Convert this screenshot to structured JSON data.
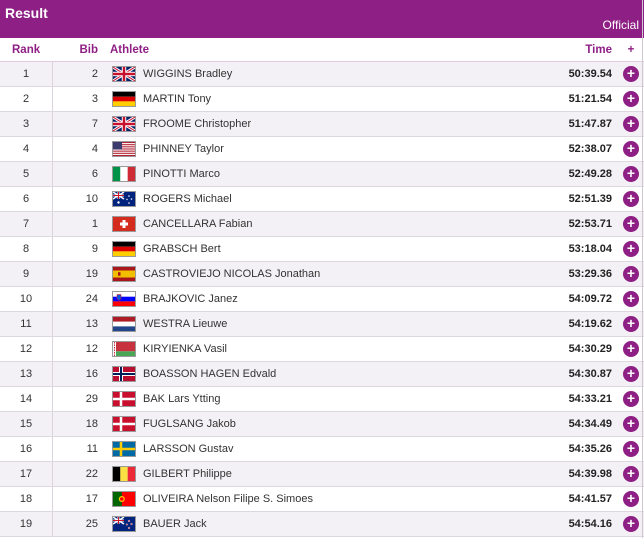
{
  "header": {
    "title": "Result",
    "status": "Official"
  },
  "columns": {
    "rank": "Rank",
    "bib": "Bib",
    "athlete": "Athlete",
    "time": "Time",
    "more": "+"
  },
  "colors": {
    "accent": "#8e1f84",
    "row_alt": "#f3f1f5"
  },
  "results": [
    {
      "rank": "1",
      "bib": "2",
      "flag": "gbr",
      "name": "WIGGINS Bradley",
      "time": "50:39.54"
    },
    {
      "rank": "2",
      "bib": "3",
      "flag": "ger",
      "name": "MARTIN Tony",
      "time": "51:21.54"
    },
    {
      "rank": "3",
      "bib": "7",
      "flag": "gbr",
      "name": "FROOME Christopher",
      "time": "51:47.87"
    },
    {
      "rank": "4",
      "bib": "4",
      "flag": "usa",
      "name": "PHINNEY Taylor",
      "time": "52:38.07"
    },
    {
      "rank": "5",
      "bib": "6",
      "flag": "ita",
      "name": "PINOTTI Marco",
      "time": "52:49.28"
    },
    {
      "rank": "6",
      "bib": "10",
      "flag": "aus",
      "name": "ROGERS Michael",
      "time": "52:51.39"
    },
    {
      "rank": "7",
      "bib": "1",
      "flag": "sui",
      "name": "CANCELLARA Fabian",
      "time": "52:53.71"
    },
    {
      "rank": "8",
      "bib": "9",
      "flag": "ger",
      "name": "GRABSCH Bert",
      "time": "53:18.04"
    },
    {
      "rank": "9",
      "bib": "19",
      "flag": "esp",
      "name": "CASTROVIEJO NICOLAS Jonathan",
      "time": "53:29.36"
    },
    {
      "rank": "10",
      "bib": "24",
      "flag": "slo",
      "name": "BRAJKOVIC Janez",
      "time": "54:09.72"
    },
    {
      "rank": "11",
      "bib": "13",
      "flag": "ned",
      "name": "WESTRA Lieuwe",
      "time": "54:19.62"
    },
    {
      "rank": "12",
      "bib": "12",
      "flag": "blr",
      "name": "KIRYIENKA Vasil",
      "time": "54:30.29"
    },
    {
      "rank": "13",
      "bib": "16",
      "flag": "nor",
      "name": "BOASSON HAGEN Edvald",
      "time": "54:30.87"
    },
    {
      "rank": "14",
      "bib": "29",
      "flag": "den",
      "name": "BAK Lars Ytting",
      "time": "54:33.21"
    },
    {
      "rank": "15",
      "bib": "18",
      "flag": "den",
      "name": "FUGLSANG Jakob",
      "time": "54:34.49"
    },
    {
      "rank": "16",
      "bib": "11",
      "flag": "swe",
      "name": "LARSSON Gustav",
      "time": "54:35.26"
    },
    {
      "rank": "17",
      "bib": "22",
      "flag": "bel",
      "name": "GILBERT Philippe",
      "time": "54:39.98"
    },
    {
      "rank": "18",
      "bib": "17",
      "flag": "por",
      "name": "OLIVEIRA Nelson Filipe S. Simoes",
      "time": "54:41.57"
    },
    {
      "rank": "19",
      "bib": "25",
      "flag": "nzl",
      "name": "BAUER Jack",
      "time": "54:54.16"
    }
  ]
}
